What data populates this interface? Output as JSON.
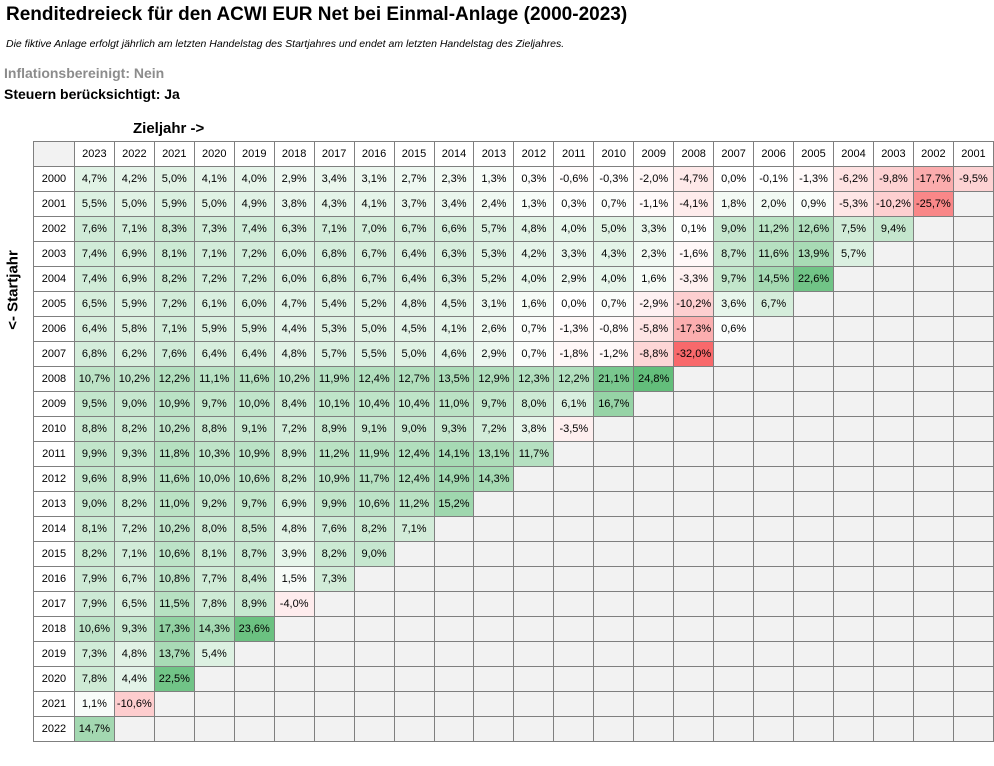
{
  "title": "Renditedreieck für den ACWI EUR Net bei Einmal-Anlage (2000-2023)",
  "subtitle": "Die fiktive Anlage erfolgt jährlich am letzten Handelstag des Startjahres und endet am letzten Handelstag des Zieljahres.",
  "inflation_label": "Inflationsbereinigt: Nein",
  "taxes_label": "Steuern berücksichtigt: Ja",
  "target_year_label": "Zieljahr ->",
  "start_year_label": "<- Startjahr",
  "colors": {
    "positive": "#63be7b",
    "negative": "#f8696b",
    "neutral": "#ffffff",
    "empty": "#f2f2f2",
    "grid": "#7f7f7f",
    "muted_text": "#8c8c8c"
  },
  "chart_data": {
    "type": "heatmap",
    "unit": "%",
    "target_years": [
      "2023",
      "2022",
      "2021",
      "2020",
      "2019",
      "2018",
      "2017",
      "2016",
      "2015",
      "2014",
      "2013",
      "2012",
      "2011",
      "2010",
      "2009",
      "2008",
      "2007",
      "2006",
      "2005",
      "2004",
      "2003",
      "2002",
      "2001"
    ],
    "start_years": [
      "2000",
      "2001",
      "2002",
      "2003",
      "2004",
      "2005",
      "2006",
      "2007",
      "2008",
      "2009",
      "2010",
      "2011",
      "2012",
      "2013",
      "2014",
      "2015",
      "2016",
      "2017",
      "2018",
      "2019",
      "2020",
      "2021",
      "2022"
    ],
    "rows": [
      [
        "4,7%",
        "4,2%",
        "5,0%",
        "4,1%",
        "4,0%",
        "2,9%",
        "3,4%",
        "3,1%",
        "2,7%",
        "2,3%",
        "1,3%",
        "0,3%",
        "-0,6%",
        "-0,3%",
        "-2,0%",
        "-4,7%",
        "0,0%",
        "-0,1%",
        "-1,3%",
        "-6,2%",
        "-9,8%",
        "-17,7%",
        "-9,5%"
      ],
      [
        "5,5%",
        "5,0%",
        "5,9%",
        "5,0%",
        "4,9%",
        "3,8%",
        "4,3%",
        "4,1%",
        "3,7%",
        "3,4%",
        "2,4%",
        "1,3%",
        "0,3%",
        "0,7%",
        "-1,1%",
        "-4,1%",
        "1,8%",
        "2,0%",
        "0,9%",
        "-5,3%",
        "-10,2%",
        "-25,7%"
      ],
      [
        "7,6%",
        "7,1%",
        "8,3%",
        "7,3%",
        "7,4%",
        "6,3%",
        "7,1%",
        "7,0%",
        "6,7%",
        "6,6%",
        "5,7%",
        "4,8%",
        "4,0%",
        "5,0%",
        "3,3%",
        "0,1%",
        "9,0%",
        "11,2%",
        "12,6%",
        "7,5%",
        "9,4%"
      ],
      [
        "7,4%",
        "6,9%",
        "8,1%",
        "7,1%",
        "7,2%",
        "6,0%",
        "6,8%",
        "6,7%",
        "6,4%",
        "6,3%",
        "5,3%",
        "4,2%",
        "3,3%",
        "4,3%",
        "2,3%",
        "-1,6%",
        "8,7%",
        "11,6%",
        "13,9%",
        "5,7%"
      ],
      [
        "7,4%",
        "6,9%",
        "8,2%",
        "7,2%",
        "7,2%",
        "6,0%",
        "6,8%",
        "6,7%",
        "6,4%",
        "6,3%",
        "5,2%",
        "4,0%",
        "2,9%",
        "4,0%",
        "1,6%",
        "-3,3%",
        "9,7%",
        "14,5%",
        "22,6%"
      ],
      [
        "6,5%",
        "5,9%",
        "7,2%",
        "6,1%",
        "6,0%",
        "4,7%",
        "5,4%",
        "5,2%",
        "4,8%",
        "4,5%",
        "3,1%",
        "1,6%",
        "0,0%",
        "0,7%",
        "-2,9%",
        "-10,2%",
        "3,6%",
        "6,7%"
      ],
      [
        "6,4%",
        "5,8%",
        "7,1%",
        "5,9%",
        "5,9%",
        "4,4%",
        "5,3%",
        "5,0%",
        "4,5%",
        "4,1%",
        "2,6%",
        "0,7%",
        "-1,3%",
        "-0,8%",
        "-5,8%",
        "-17,3%",
        "0,6%"
      ],
      [
        "6,8%",
        "6,2%",
        "7,6%",
        "6,4%",
        "6,4%",
        "4,8%",
        "5,7%",
        "5,5%",
        "5,0%",
        "4,6%",
        "2,9%",
        "0,7%",
        "-1,8%",
        "-1,2%",
        "-8,8%",
        "-32,0%"
      ],
      [
        "10,7%",
        "10,2%",
        "12,2%",
        "11,1%",
        "11,6%",
        "10,2%",
        "11,9%",
        "12,4%",
        "12,7%",
        "13,5%",
        "12,9%",
        "12,3%",
        "12,2%",
        "21,1%",
        "24,8%"
      ],
      [
        "9,5%",
        "9,0%",
        "10,9%",
        "9,7%",
        "10,0%",
        "8,4%",
        "10,1%",
        "10,4%",
        "10,4%",
        "11,0%",
        "9,7%",
        "8,0%",
        "6,1%",
        "16,7%"
      ],
      [
        "8,8%",
        "8,2%",
        "10,2%",
        "8,8%",
        "9,1%",
        "7,2%",
        "8,9%",
        "9,1%",
        "9,0%",
        "9,3%",
        "7,2%",
        "3,8%",
        "-3,5%"
      ],
      [
        "9,9%",
        "9,3%",
        "11,8%",
        "10,3%",
        "10,9%",
        "8,9%",
        "11,2%",
        "11,9%",
        "12,4%",
        "14,1%",
        "13,1%",
        "11,7%"
      ],
      [
        "9,6%",
        "8,9%",
        "11,6%",
        "10,0%",
        "10,6%",
        "8,2%",
        "10,9%",
        "11,7%",
        "12,4%",
        "14,9%",
        "14,3%"
      ],
      [
        "9,0%",
        "8,2%",
        "11,0%",
        "9,2%",
        "9,7%",
        "6,9%",
        "9,9%",
        "10,6%",
        "11,2%",
        "15,2%"
      ],
      [
        "8,1%",
        "7,2%",
        "10,2%",
        "8,0%",
        "8,5%",
        "4,8%",
        "7,6%",
        "8,2%",
        "7,1%"
      ],
      [
        "8,2%",
        "7,1%",
        "10,6%",
        "8,1%",
        "8,7%",
        "3,9%",
        "8,2%",
        "9,0%"
      ],
      [
        "7,9%",
        "6,7%",
        "10,8%",
        "7,7%",
        "8,4%",
        "1,5%",
        "7,3%"
      ],
      [
        "7,9%",
        "6,5%",
        "11,5%",
        "7,8%",
        "8,9%",
        "-4,0%"
      ],
      [
        "10,6%",
        "9,3%",
        "17,3%",
        "14,3%",
        "23,6%"
      ],
      [
        "7,3%",
        "4,8%",
        "13,7%",
        "5,4%"
      ],
      [
        "7,8%",
        "4,4%",
        "22,5%"
      ],
      [
        "1,1%",
        "-10,6%"
      ],
      [
        "14,7%"
      ]
    ]
  }
}
